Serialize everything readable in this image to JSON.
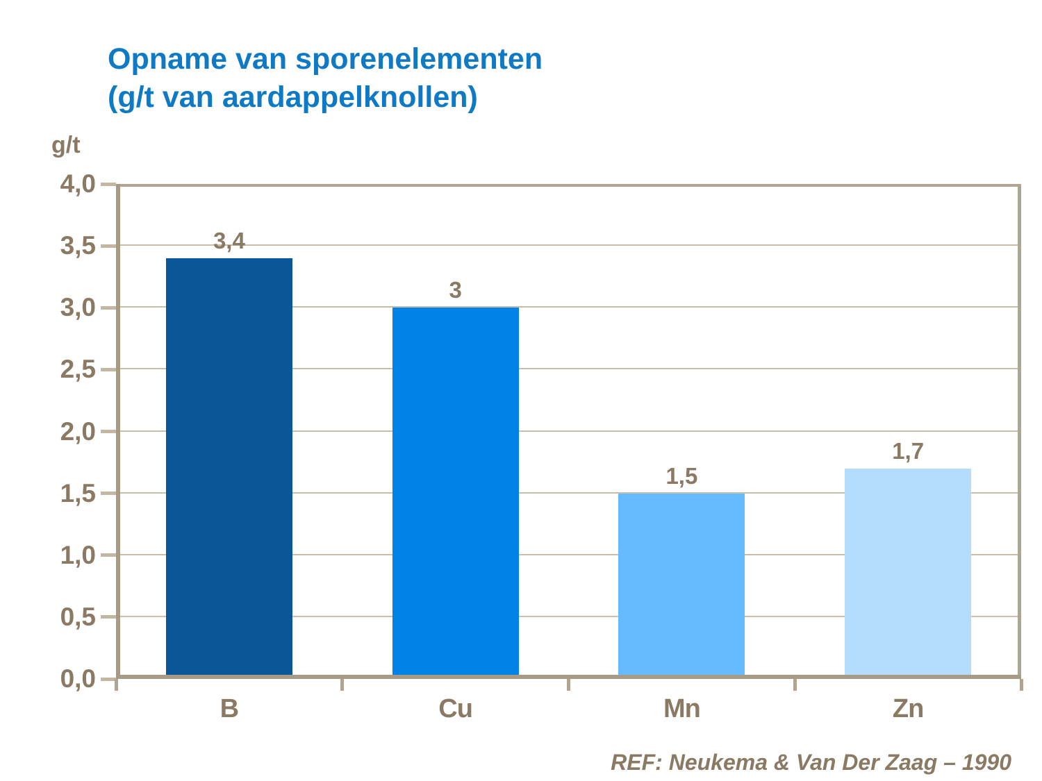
{
  "title": {
    "line1": "Opname van sporenelementen",
    "line2": "(g/t van aardappelknollen)"
  },
  "axis_unit": "g/t",
  "reference": "REF: Neukema & Van Der Zaag – 1990",
  "colors": {
    "title_blue": "#0E79C5",
    "text_brown": "#8A7963",
    "axis_frame": "#A79B86",
    "gridline": "#C9BDA9",
    "tick_mark": "#C3B7A3"
  },
  "chart_data": {
    "type": "bar",
    "title": "Opname van sporenelementen (g/t van aardappelknollen)",
    "xlabel": "",
    "ylabel": "g/t",
    "categories": [
      "B",
      "Cu",
      "Mn",
      "Zn"
    ],
    "values": [
      3.4,
      3,
      1.5,
      1.7
    ],
    "value_labels": [
      "3,4",
      "3",
      "1,5",
      "1,7"
    ],
    "bar_colors": [
      "#0B5699",
      "#0082E6",
      "#66BBFF",
      "#B3DCFF"
    ],
    "ylim": [
      0,
      4
    ],
    "ytick_step": 0.5,
    "ytick_labels": [
      "0,0",
      "0,5",
      "1,0",
      "1,5",
      "2,0",
      "2,5",
      "3,0",
      "3,5",
      "4,0"
    ],
    "grid": true,
    "legend": false
  }
}
